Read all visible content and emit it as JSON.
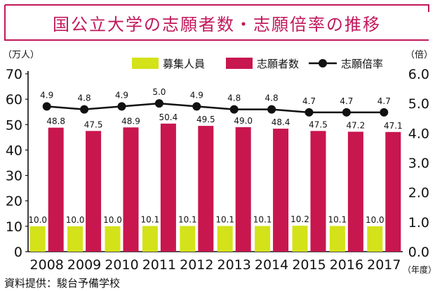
{
  "title": "国公立大学の志願者数・志願倍率の推移",
  "source": "資料提供：駿台予備学校",
  "chart_data": {
    "type": "bar",
    "categories": [
      "2008",
      "2009",
      "2010",
      "2011",
      "2012",
      "2013",
      "2014",
      "2015",
      "2016",
      "2017"
    ],
    "series": [
      {
        "name": "募集人員",
        "type": "bar",
        "axis": "left",
        "color": "#d4e21a",
        "values": [
          10.0,
          10.0,
          10.0,
          10.1,
          10.1,
          10.1,
          10.1,
          10.2,
          10.1,
          10.0
        ]
      },
      {
        "name": "志願者数",
        "type": "bar",
        "axis": "left",
        "color": "#c8164e",
        "values": [
          48.8,
          47.5,
          48.9,
          50.4,
          49.5,
          49.0,
          48.4,
          47.5,
          47.2,
          47.1
        ]
      },
      {
        "name": "志願倍率",
        "type": "line",
        "axis": "right",
        "color": "#111111",
        "values": [
          4.9,
          4.8,
          4.9,
          5.0,
          4.9,
          4.8,
          4.8,
          4.7,
          4.7,
          4.7
        ]
      }
    ],
    "left_unit": "（万人）",
    "right_unit": "（倍）",
    "x_unit": "（年度）",
    "ylim_left": [
      0,
      70
    ],
    "ylim_right": [
      0.0,
      6.0
    ],
    "left_ticks": [
      "0",
      "10",
      "20",
      "30",
      "40",
      "50",
      "60",
      "70"
    ],
    "right_ticks": [
      "0.0",
      "1.0",
      "2.0",
      "3.0",
      "4.0",
      "5.0",
      "6.0"
    ],
    "legend_position": "top-right",
    "grid": false
  }
}
